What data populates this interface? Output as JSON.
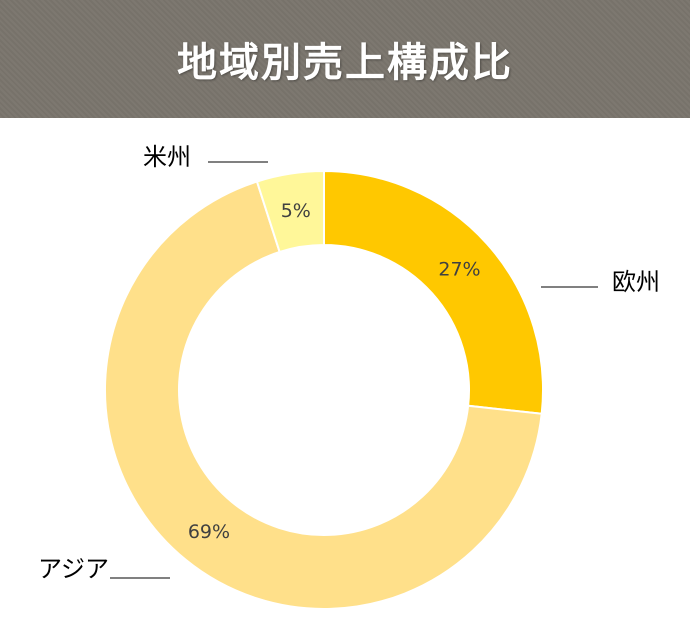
{
  "title": "地域別売上構成比",
  "chart_data": {
    "type": "pie",
    "subtype": "donut",
    "title": "地域別売上構成比",
    "series": [
      {
        "name": "欧州",
        "value": 27,
        "label": "27%",
        "color": "#ffc800"
      },
      {
        "name": "アジア",
        "value": 69,
        "label": "69%",
        "color": "#ffe08a"
      },
      {
        "name": "米州",
        "value": 5,
        "label": "5%",
        "color": "#fff799"
      }
    ],
    "legend": "none"
  },
  "colors": {
    "title_bar": "#7a756d",
    "title_text": "#ffffff"
  }
}
